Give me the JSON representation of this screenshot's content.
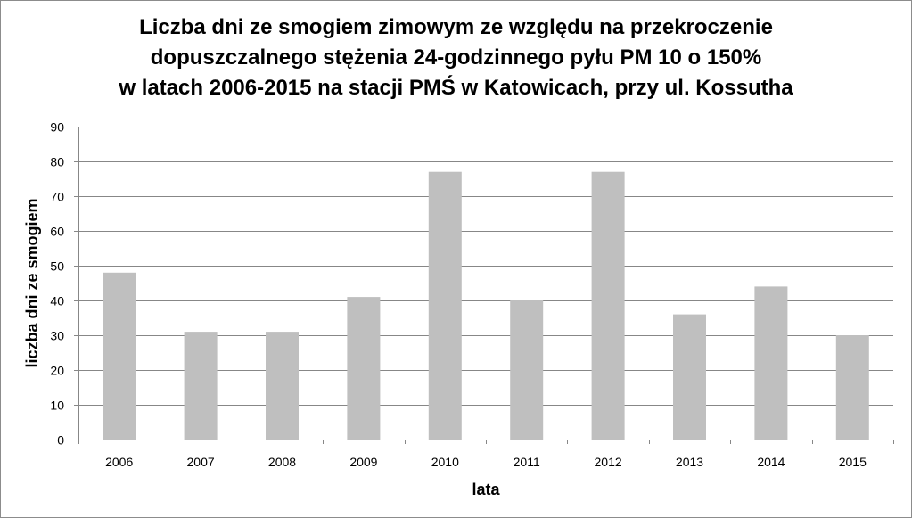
{
  "chart_data": {
    "type": "bar",
    "title_lines": [
      "Liczba dni ze smogiem zimowym ze względu na przekroczenie",
      "dopuszczalnego stężenia 24-godzinnego pyłu PM 10 o 150%",
      "w latach 2006-2015 na stacji PMŚ w Katowicach, przy ul. Kossutha"
    ],
    "categories": [
      "2006",
      "2007",
      "2008",
      "2009",
      "2010",
      "2011",
      "2012",
      "2013",
      "2014",
      "2015"
    ],
    "values": [
      48,
      31,
      31,
      41,
      77,
      40,
      77,
      36,
      44,
      30
    ],
    "xlabel": "lata",
    "ylabel": "liczba dni ze smogiem",
    "ylim": [
      0,
      90
    ],
    "yticks": [
      "0",
      "10",
      "20",
      "30",
      "40",
      "50",
      "60",
      "70",
      "80",
      "90"
    ],
    "grid": true,
    "legend": "none",
    "colors": {
      "bar": "#bfbfbf",
      "grid": "#878787",
      "axis": "#878787"
    }
  }
}
